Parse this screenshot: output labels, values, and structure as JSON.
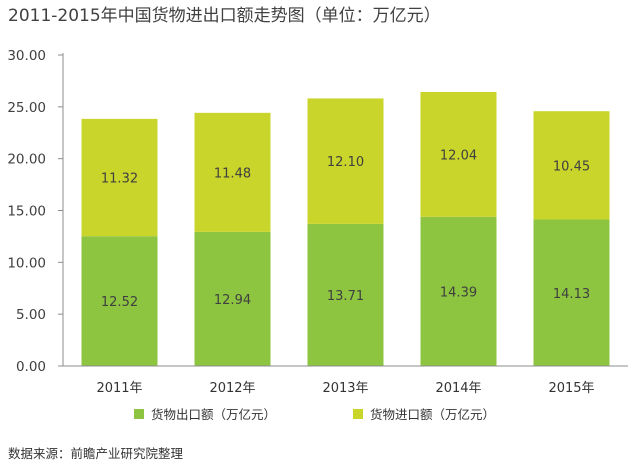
{
  "chart_data": {
    "type": "bar",
    "stacked": true,
    "title": "2011-2015年中国货物进出口额走势图（单位：万亿元）",
    "categories": [
      "2011年",
      "2012年",
      "2013年",
      "2014年",
      "2015年"
    ],
    "series": [
      {
        "name": "货物出口额（万亿元）",
        "values": [
          12.52,
          12.94,
          13.71,
          14.39,
          14.13
        ],
        "color": "#8dc440"
      },
      {
        "name": "货物进口额（万亿元）",
        "values": [
          11.32,
          11.48,
          12.1,
          12.04,
          10.45
        ],
        "color": "#c9d52a"
      }
    ],
    "y_ticks": [
      "0.00",
      "5.00",
      "10.00",
      "15.00",
      "20.00",
      "25.00",
      "30.00"
    ],
    "ylim": [
      0,
      30
    ],
    "grid": false,
    "legend_position": "bottom",
    "source": "数据来源：前瞻产业研究院整理"
  }
}
